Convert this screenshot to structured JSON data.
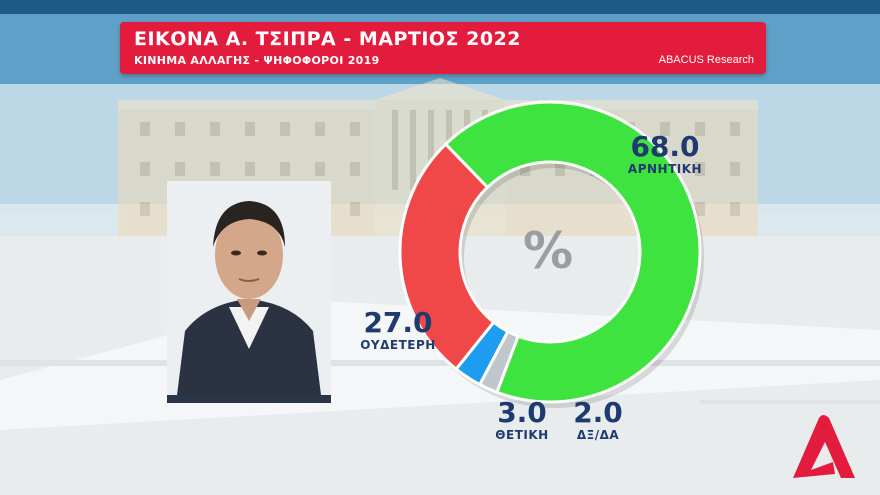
{
  "header": {
    "title": "ΕΙΚΟΝΑ Α. ΤΣΙΠΡΑ - ΜΑΡΤΙΟΣ 2022",
    "subtitle": "ΚΙΝΗΜΑ ΑΛΛΑΓΗΣ - ΨΗΦΟΦΟΡΟΙ 2019",
    "source": "ABACUS Research"
  },
  "chart_center_label": "%",
  "colors": {
    "header": "#e31c3d",
    "negative": "#3fe33f",
    "neutral": "#f04848",
    "positive": "#1e9cf0",
    "dk_na": "#bfc6cc",
    "value_text": "#1f3a6e"
  },
  "chart_data": {
    "type": "pie",
    "style": "donut",
    "categories": [
      "ΑΡΝΗΤΙΚΗ",
      "ΟΥΔΕΤΕΡΗ",
      "ΘΕΤΙΚΗ",
      "ΔΞ/ΔΑ"
    ],
    "values": [
      68.0,
      27.0,
      3.0,
      2.0
    ],
    "value_labels": [
      "68.0",
      "27.0",
      "3.0",
      "2.0"
    ],
    "colors": [
      "#3fe33f",
      "#f04848",
      "#1e9cf0",
      "#bfc6cc"
    ],
    "title": "ΕΙΚΟΝΑ Α. ΤΣΙΠΡΑ - ΜΑΡΤΙΟΣ 2022",
    "subtitle": "ΚΙΝΗΜΑ ΑΛΛΑΓΗΣ - ΨΗΦΟΦΟΡΟΙ 2019"
  },
  "photo": {
    "icon": "portrait-photo"
  },
  "logo": {
    "icon": "alpha-tv-logo"
  }
}
